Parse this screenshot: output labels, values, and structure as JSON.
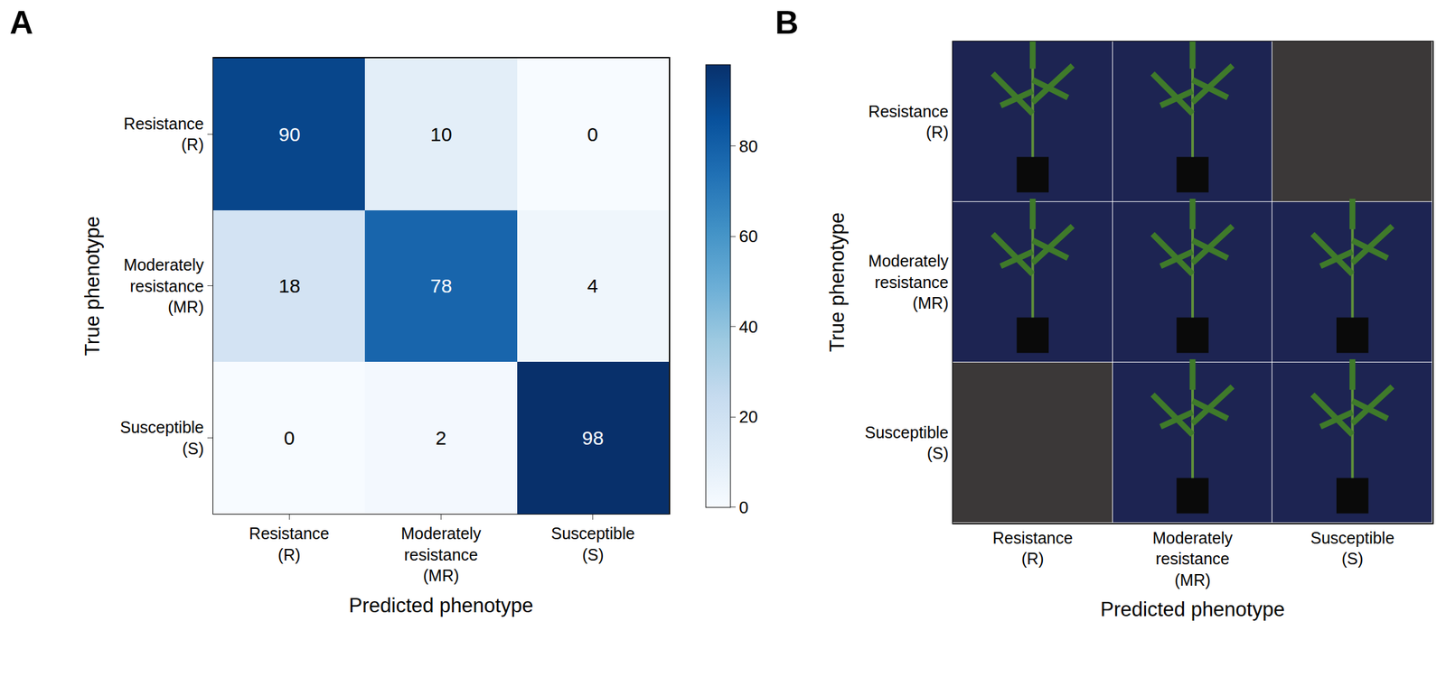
{
  "chart_data": [
    {
      "type": "heatmap",
      "panel": "A",
      "x_categories": [
        "Resistance (R)",
        "Moderately resistance (MR)",
        "Susceptible (S)"
      ],
      "y_categories": [
        "Resistance (R)",
        "Moderately resistance (MR)",
        "Susceptible (S)"
      ],
      "xlabel": "Predicted phenotype",
      "ylabel": "True phenotype",
      "z": [
        [
          90,
          10,
          0
        ],
        [
          18,
          78,
          4
        ],
        [
          0,
          2,
          98
        ]
      ],
      "zlim": [
        0,
        98
      ],
      "colorbar_ticks": [
        0,
        20,
        40,
        60,
        80
      ],
      "data_labels": true
    },
    {
      "type": "image_grid",
      "panel": "B",
      "x_categories": [
        "Resistance (R)",
        "Moderately resistance (MR)",
        "Susceptible (S)"
      ],
      "y_categories": [
        "Resistance (R)",
        "Moderately resistance (MR)",
        "Susceptible (S)"
      ],
      "xlabel": "Predicted phenotype",
      "ylabel": "True phenotype",
      "images": [
        [
          true,
          true,
          false
        ],
        [
          true,
          true,
          true
        ],
        [
          false,
          true,
          true
        ]
      ]
    }
  ]
}
